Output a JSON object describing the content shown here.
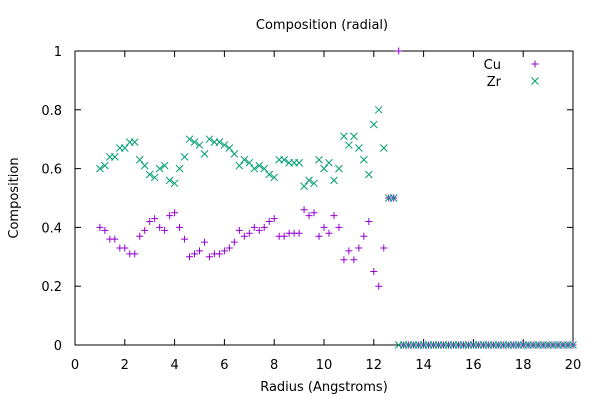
{
  "chart_data": {
    "type": "scatter",
    "title": "Composition (radial)",
    "xlabel": "Radius (Angstroms)",
    "ylabel": "Composition",
    "xlim": [
      0,
      20
    ],
    "ylim": [
      0,
      1
    ],
    "xticks": [
      0,
      2,
      4,
      6,
      8,
      10,
      12,
      14,
      16,
      18,
      20
    ],
    "yticks": [
      0,
      0.2,
      0.4,
      0.6,
      0.8,
      1
    ],
    "ytick_labels": [
      "0",
      "0.2",
      "0.4",
      "0.6",
      "0.8",
      "1"
    ],
    "grid": false,
    "legend_position": "top-right",
    "series": [
      {
        "name": "Cu",
        "marker": "plus",
        "color": "#9400d3",
        "points": [
          [
            1.0,
            0.4
          ],
          [
            1.2,
            0.39
          ],
          [
            1.4,
            0.36
          ],
          [
            1.6,
            0.36
          ],
          [
            1.8,
            0.33
          ],
          [
            2.0,
            0.33
          ],
          [
            2.2,
            0.31
          ],
          [
            2.4,
            0.31
          ],
          [
            2.6,
            0.37
          ],
          [
            2.8,
            0.39
          ],
          [
            3.0,
            0.42
          ],
          [
            3.2,
            0.43
          ],
          [
            3.4,
            0.4
          ],
          [
            3.6,
            0.39
          ],
          [
            3.8,
            0.44
          ],
          [
            4.0,
            0.45
          ],
          [
            4.2,
            0.4
          ],
          [
            4.4,
            0.36
          ],
          [
            4.6,
            0.3
          ],
          [
            4.8,
            0.31
          ],
          [
            5.0,
            0.32
          ],
          [
            5.2,
            0.35
          ],
          [
            5.4,
            0.3
          ],
          [
            5.6,
            0.31
          ],
          [
            5.8,
            0.31
          ],
          [
            6.0,
            0.32
          ],
          [
            6.2,
            0.33
          ],
          [
            6.4,
            0.35
          ],
          [
            6.6,
            0.39
          ],
          [
            6.8,
            0.37
          ],
          [
            7.0,
            0.38
          ],
          [
            7.2,
            0.4
          ],
          [
            7.4,
            0.39
          ],
          [
            7.6,
            0.4
          ],
          [
            7.8,
            0.42
          ],
          [
            8.0,
            0.43
          ],
          [
            8.2,
            0.37
          ],
          [
            8.4,
            0.37
          ],
          [
            8.6,
            0.38
          ],
          [
            8.8,
            0.38
          ],
          [
            9.0,
            0.38
          ],
          [
            9.2,
            0.46
          ],
          [
            9.4,
            0.44
          ],
          [
            9.6,
            0.45
          ],
          [
            9.8,
            0.37
          ],
          [
            10.0,
            0.4
          ],
          [
            10.2,
            0.38
          ],
          [
            10.4,
            0.44
          ],
          [
            10.6,
            0.4
          ],
          [
            10.8,
            0.29
          ],
          [
            11.0,
            0.32
          ],
          [
            11.2,
            0.29
          ],
          [
            11.4,
            0.33
          ],
          [
            11.6,
            0.37
          ],
          [
            11.8,
            0.42
          ],
          [
            12.0,
            0.25
          ],
          [
            12.2,
            0.2
          ],
          [
            12.4,
            0.33
          ],
          [
            12.6,
            0.5
          ],
          [
            12.8,
            0.5
          ],
          [
            13.0,
            1.0
          ],
          [
            13.2,
            0.0
          ],
          [
            13.4,
            0.0
          ],
          [
            13.6,
            0.0
          ],
          [
            13.8,
            0.0
          ],
          [
            14.0,
            0.0
          ],
          [
            14.2,
            0.0
          ],
          [
            14.4,
            0.0
          ],
          [
            14.6,
            0.0
          ],
          [
            14.8,
            0.0
          ],
          [
            15.0,
            0.0
          ],
          [
            15.2,
            0.0
          ],
          [
            15.4,
            0.0
          ],
          [
            15.6,
            0.0
          ],
          [
            15.8,
            0.0
          ],
          [
            16.0,
            0.0
          ],
          [
            16.2,
            0.0
          ],
          [
            16.4,
            0.0
          ],
          [
            16.6,
            0.0
          ],
          [
            16.8,
            0.0
          ],
          [
            17.0,
            0.0
          ],
          [
            17.2,
            0.0
          ],
          [
            17.4,
            0.0
          ],
          [
            17.6,
            0.0
          ],
          [
            17.8,
            0.0
          ],
          [
            18.0,
            0.0
          ],
          [
            18.2,
            0.0
          ],
          [
            18.4,
            0.0
          ],
          [
            18.6,
            0.0
          ],
          [
            18.8,
            0.0
          ],
          [
            19.0,
            0.0
          ],
          [
            19.2,
            0.0
          ],
          [
            19.4,
            0.0
          ],
          [
            19.6,
            0.0
          ],
          [
            19.8,
            0.0
          ],
          [
            20.0,
            0.0
          ]
        ]
      },
      {
        "name": "Zr",
        "marker": "cross",
        "color": "#009e73",
        "points": [
          [
            1.0,
            0.6
          ],
          [
            1.2,
            0.61
          ],
          [
            1.4,
            0.64
          ],
          [
            1.6,
            0.64
          ],
          [
            1.8,
            0.67
          ],
          [
            2.0,
            0.67
          ],
          [
            2.2,
            0.69
          ],
          [
            2.4,
            0.69
          ],
          [
            2.6,
            0.63
          ],
          [
            2.8,
            0.61
          ],
          [
            3.0,
            0.58
          ],
          [
            3.2,
            0.57
          ],
          [
            3.4,
            0.6
          ],
          [
            3.6,
            0.61
          ],
          [
            3.8,
            0.56
          ],
          [
            4.0,
            0.55
          ],
          [
            4.2,
            0.6
          ],
          [
            4.4,
            0.64
          ],
          [
            4.6,
            0.7
          ],
          [
            4.8,
            0.69
          ],
          [
            5.0,
            0.68
          ],
          [
            5.2,
            0.65
          ],
          [
            5.4,
            0.7
          ],
          [
            5.6,
            0.69
          ],
          [
            5.8,
            0.69
          ],
          [
            6.0,
            0.68
          ],
          [
            6.2,
            0.67
          ],
          [
            6.4,
            0.65
          ],
          [
            6.6,
            0.61
          ],
          [
            6.8,
            0.63
          ],
          [
            7.0,
            0.62
          ],
          [
            7.2,
            0.6
          ],
          [
            7.4,
            0.61
          ],
          [
            7.6,
            0.6
          ],
          [
            7.8,
            0.58
          ],
          [
            8.0,
            0.57
          ],
          [
            8.2,
            0.63
          ],
          [
            8.4,
            0.63
          ],
          [
            8.6,
            0.62
          ],
          [
            8.8,
            0.62
          ],
          [
            9.0,
            0.62
          ],
          [
            9.2,
            0.54
          ],
          [
            9.4,
            0.56
          ],
          [
            9.6,
            0.55
          ],
          [
            9.8,
            0.63
          ],
          [
            10.0,
            0.6
          ],
          [
            10.2,
            0.62
          ],
          [
            10.4,
            0.56
          ],
          [
            10.6,
            0.6
          ],
          [
            10.8,
            0.71
          ],
          [
            11.0,
            0.68
          ],
          [
            11.2,
            0.71
          ],
          [
            11.4,
            0.67
          ],
          [
            11.6,
            0.63
          ],
          [
            11.8,
            0.58
          ],
          [
            12.0,
            0.75
          ],
          [
            12.2,
            0.8
          ],
          [
            12.4,
            0.67
          ],
          [
            12.6,
            0.5
          ],
          [
            12.8,
            0.5
          ],
          [
            13.0,
            0.0
          ],
          [
            13.2,
            0.0
          ],
          [
            13.4,
            0.0
          ],
          [
            13.6,
            0.0
          ],
          [
            13.8,
            0.0
          ],
          [
            14.0,
            0.0
          ],
          [
            14.2,
            0.0
          ],
          [
            14.4,
            0.0
          ],
          [
            14.6,
            0.0
          ],
          [
            14.8,
            0.0
          ],
          [
            15.0,
            0.0
          ],
          [
            15.2,
            0.0
          ],
          [
            15.4,
            0.0
          ],
          [
            15.6,
            0.0
          ],
          [
            15.8,
            0.0
          ],
          [
            16.0,
            0.0
          ],
          [
            16.2,
            0.0
          ],
          [
            16.4,
            0.0
          ],
          [
            16.6,
            0.0
          ],
          [
            16.8,
            0.0
          ],
          [
            17.0,
            0.0
          ],
          [
            17.2,
            0.0
          ],
          [
            17.4,
            0.0
          ],
          [
            17.6,
            0.0
          ],
          [
            17.8,
            0.0
          ],
          [
            18.0,
            0.0
          ],
          [
            18.2,
            0.0
          ],
          [
            18.4,
            0.0
          ],
          [
            18.6,
            0.0
          ],
          [
            18.8,
            0.0
          ],
          [
            19.0,
            0.0
          ],
          [
            19.2,
            0.0
          ],
          [
            19.4,
            0.0
          ],
          [
            19.6,
            0.0
          ],
          [
            19.8,
            0.0
          ],
          [
            20.0,
            0.0
          ]
        ]
      }
    ]
  }
}
